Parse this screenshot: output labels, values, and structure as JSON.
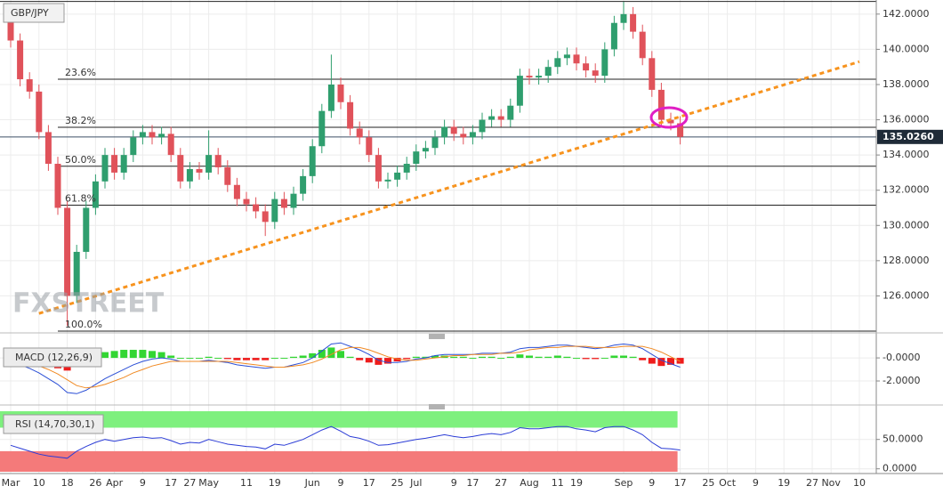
{
  "chart_data": {
    "type": "candlestick",
    "title": "GBP/JPY",
    "categories": [
      "Mar",
      null,
      null,
      "10",
      null,
      null,
      "18",
      null,
      null,
      "26",
      null,
      "Apr",
      null,
      null,
      "9",
      null,
      null,
      "17",
      null,
      "27",
      null,
      "May",
      null,
      null,
      null,
      "11",
      null,
      null,
      "19",
      null,
      null,
      null,
      "Jun",
      null,
      null,
      "9",
      null,
      null,
      "17",
      null,
      null,
      "25",
      null,
      "Jul",
      null,
      null,
      null,
      "9",
      null,
      "17",
      null,
      null,
      "27",
      null,
      null,
      "Aug",
      null,
      null,
      "11",
      null,
      "19",
      null,
      null,
      null,
      null,
      "Sep",
      null,
      null,
      "9",
      null,
      null,
      "17",
      null,
      null,
      "25",
      null,
      "Oct",
      null,
      null,
      "9",
      null,
      null,
      "19",
      null,
      null,
      "27",
      null,
      "Nov",
      null,
      null,
      "10"
    ],
    "open": [
      141.8,
      140.5,
      138.3,
      137.6,
      135.3,
      133.5,
      131.0,
      126.0,
      128.5,
      131.0,
      132.5,
      134.0,
      133.0,
      134.0,
      135.0,
      135.3,
      135.0,
      135.2,
      134.0,
      132.5,
      133.2,
      133.0,
      134.0,
      133.3,
      132.3,
      131.5,
      131.2,
      130.8,
      130.2,
      131.5,
      131.0,
      131.8,
      132.8,
      134.5,
      136.5,
      138.0,
      137.0,
      135.5,
      135.0,
      134.0,
      132.5,
      132.6,
      133.0,
      133.5,
      134.2,
      134.4,
      135.0,
      135.6,
      135.2,
      135.0,
      135.3,
      136.0,
      136.2,
      136.0,
      136.8,
      138.5,
      138.4,
      138.5,
      139.0,
      139.5,
      139.7,
      139.2,
      138.8,
      138.5,
      140.0,
      141.5,
      142.0,
      141.0,
      139.5,
      137.7,
      136.0,
      135.8,
      null,
      null,
      null,
      null,
      null,
      null,
      null,
      null,
      null,
      null,
      null,
      null,
      null,
      null,
      null,
      null,
      null,
      null,
      null
    ],
    "high": [
      142.3,
      140.9,
      138.7,
      138.0,
      135.7,
      133.9,
      131.4,
      128.9,
      131.4,
      132.9,
      134.4,
      134.4,
      134.4,
      135.4,
      135.7,
      135.7,
      135.6,
      135.6,
      134.4,
      133.6,
      133.6,
      135.4,
      134.4,
      133.7,
      132.7,
      131.9,
      131.6,
      131.2,
      131.9,
      131.9,
      132.2,
      133.2,
      134.9,
      136.9,
      139.7,
      138.4,
      137.4,
      135.9,
      135.4,
      134.4,
      133.0,
      133.4,
      133.9,
      134.6,
      134.8,
      135.4,
      136.0,
      136.0,
      135.6,
      135.7,
      136.4,
      136.6,
      136.6,
      137.2,
      138.9,
      138.9,
      138.9,
      139.4,
      139.9,
      140.1,
      140.1,
      139.6,
      139.2,
      140.4,
      141.9,
      142.7,
      142.4,
      141.4,
      139.9,
      138.1,
      136.4,
      136.2,
      null,
      null,
      null,
      null,
      null,
      null,
      null,
      null,
      null,
      null,
      null,
      null,
      null,
      null,
      null,
      null,
      null,
      null,
      null
    ],
    "low": [
      140.1,
      137.9,
      137.2,
      134.9,
      133.1,
      130.6,
      124.3,
      125.6,
      128.1,
      130.6,
      132.1,
      132.6,
      132.6,
      133.6,
      134.6,
      134.6,
      134.6,
      133.6,
      132.1,
      132.1,
      132.6,
      132.6,
      132.9,
      131.9,
      131.1,
      130.8,
      130.4,
      129.4,
      129.8,
      130.6,
      130.6,
      131.4,
      132.4,
      134.1,
      136.1,
      136.6,
      135.1,
      134.6,
      133.6,
      132.1,
      132.1,
      132.2,
      132.6,
      133.1,
      133.8,
      134.0,
      134.6,
      134.8,
      134.6,
      134.6,
      134.9,
      135.6,
      135.6,
      135.6,
      136.4,
      138.0,
      138.0,
      138.1,
      138.6,
      139.1,
      138.8,
      138.4,
      138.1,
      138.1,
      139.6,
      141.1,
      140.6,
      139.1,
      137.3,
      135.6,
      135.4,
      134.6,
      null,
      null,
      null,
      null,
      null,
      null,
      null,
      null,
      null,
      null,
      null,
      null,
      null,
      null,
      null,
      null,
      null,
      null,
      null
    ],
    "close": [
      140.5,
      138.3,
      137.6,
      135.3,
      133.5,
      131.0,
      126.0,
      128.5,
      131.0,
      132.5,
      134.0,
      133.0,
      134.0,
      135.0,
      135.3,
      135.0,
      135.2,
      134.0,
      132.5,
      133.2,
      133.0,
      134.0,
      133.3,
      132.3,
      131.5,
      131.2,
      130.8,
      130.2,
      131.5,
      131.0,
      131.8,
      132.8,
      134.5,
      136.5,
      138.0,
      137.0,
      135.5,
      135.0,
      134.0,
      132.5,
      132.6,
      133.0,
      133.5,
      134.2,
      134.4,
      135.0,
      135.6,
      135.2,
      135.0,
      135.3,
      136.0,
      136.2,
      136.0,
      136.8,
      138.5,
      138.4,
      138.5,
      139.0,
      139.5,
      139.7,
      139.2,
      138.8,
      138.5,
      140.0,
      141.5,
      142.0,
      141.0,
      139.5,
      137.7,
      136.0,
      135.8,
      135.03,
      null,
      null,
      null,
      null,
      null,
      null,
      null,
      null,
      null,
      null,
      null,
      null,
      null,
      null,
      null,
      null,
      null,
      null,
      null
    ],
    "up_color": "#2f9e6e",
    "down_color": "#e0525a",
    "ylim": [
      124,
      142.8
    ],
    "yticks": [
      {
        "value": 126,
        "label": "126.0000"
      },
      {
        "value": 128,
        "label": "128.0000"
      },
      {
        "value": 130,
        "label": "130.0000"
      },
      {
        "value": 132,
        "label": "132.0000"
      },
      {
        "value": 134,
        "label": "134.0000"
      },
      {
        "value": 136,
        "label": "136.0000"
      },
      {
        "value": 138,
        "label": "138.0000"
      },
      {
        "value": 140,
        "label": "140.0000"
      },
      {
        "value": 142,
        "label": "142.0000"
      }
    ],
    "grid": true,
    "last_price": {
      "value": 135.026,
      "label": "135.0260"
    },
    "swing_high": 142.72,
    "fib_levels": [
      {
        "label": "23.6%",
        "value": 138.3
      },
      {
        "label": "38.2%",
        "value": 135.57
      },
      {
        "label": "50.0%",
        "value": 133.36
      },
      {
        "label": "61.8%",
        "value": 131.15
      },
      {
        "label": "100.0%",
        "value": 124.0
      }
    ],
    "trendline": {
      "x": [
        3,
        90
      ],
      "y": [
        125.0,
        139.3
      ],
      "color": "#f7931e"
    },
    "watermark": "FXSTREET",
    "macd": {
      "title": "MACD (12,26,9)",
      "ylim": [
        -3.85,
        1.55
      ],
      "yticks": [
        {
          "value": 0,
          "label": "-0.0000"
        },
        {
          "value": -2,
          "label": "-2.0000"
        }
      ],
      "macd_color": "#2b4fd6",
      "signal_color": "#f08a24",
      "up_color": "#33d633",
      "down_color": "#ee1c1c",
      "macd": [
        -0.2,
        -0.6,
        -0.9,
        -1.3,
        -1.8,
        -2.3,
        -3.0,
        -3.1,
        -2.8,
        -2.3,
        -1.8,
        -1.4,
        -1.0,
        -0.6,
        -0.3,
        -0.1,
        0.0,
        -0.1,
        -0.3,
        -0.3,
        -0.3,
        -0.2,
        -0.3,
        -0.4,
        -0.6,
        -0.7,
        -0.8,
        -0.9,
        -0.8,
        -0.8,
        -0.6,
        -0.4,
        0.0,
        0.6,
        1.2,
        1.3,
        1.0,
        0.7,
        0.3,
        -0.2,
        -0.4,
        -0.4,
        -0.3,
        -0.1,
        0.0,
        0.2,
        0.3,
        0.3,
        0.3,
        0.3,
        0.4,
        0.4,
        0.4,
        0.5,
        0.8,
        0.9,
        0.9,
        1.0,
        1.1,
        1.1,
        1.0,
        0.9,
        0.8,
        0.9,
        1.1,
        1.2,
        1.1,
        0.8,
        0.3,
        -0.2,
        -0.5,
        -0.8,
        null,
        null,
        null,
        null,
        null,
        null,
        null,
        null,
        null,
        null,
        null,
        null,
        null,
        null,
        null,
        null,
        null,
        null,
        null
      ],
      "signal": [
        0.0,
        -0.2,
        -0.4,
        -0.7,
        -1.0,
        -1.4,
        -1.9,
        -2.4,
        -2.6,
        -2.5,
        -2.3,
        -2.0,
        -1.7,
        -1.3,
        -1.0,
        -0.7,
        -0.5,
        -0.3,
        -0.3,
        -0.3,
        -0.3,
        -0.3,
        -0.3,
        -0.3,
        -0.4,
        -0.5,
        -0.6,
        -0.7,
        -0.8,
        -0.8,
        -0.7,
        -0.6,
        -0.4,
        -0.1,
        0.3,
        0.7,
        0.9,
        0.9,
        0.7,
        0.4,
        0.1,
        -0.1,
        -0.2,
        -0.2,
        -0.1,
        0.0,
        0.1,
        0.2,
        0.2,
        0.3,
        0.3,
        0.3,
        0.4,
        0.4,
        0.5,
        0.7,
        0.8,
        0.9,
        0.9,
        1.0,
        1.0,
        1.0,
        0.9,
        0.9,
        0.9,
        1.0,
        1.0,
        1.0,
        0.8,
        0.5,
        0.1,
        -0.3,
        null,
        null,
        null,
        null,
        null,
        null,
        null,
        null,
        null,
        null,
        null,
        null,
        null,
        null,
        null,
        null,
        null,
        null,
        null
      ],
      "histogram": [
        -0.2,
        -0.4,
        -0.5,
        -0.6,
        -0.8,
        -0.9,
        -1.1,
        -0.7,
        -0.2,
        0.2,
        0.5,
        0.6,
        0.7,
        0.7,
        0.7,
        0.6,
        0.5,
        0.2,
        0.0,
        0.0,
        0.0,
        0.1,
        0.0,
        -0.1,
        -0.2,
        -0.2,
        -0.2,
        -0.2,
        0.0,
        0.0,
        0.1,
        0.2,
        0.4,
        0.7,
        0.9,
        0.6,
        0.1,
        -0.2,
        -0.4,
        -0.6,
        -0.5,
        -0.3,
        -0.1,
        0.1,
        0.1,
        0.2,
        0.2,
        0.1,
        0.1,
        0.0,
        0.1,
        0.1,
        0.0,
        0.1,
        0.3,
        0.2,
        0.1,
        0.1,
        0.2,
        0.1,
        0.0,
        -0.1,
        -0.1,
        0.0,
        0.2,
        0.2,
        0.1,
        -0.2,
        -0.5,
        -0.7,
        -0.6,
        -0.5,
        null,
        null,
        null,
        null,
        null,
        null,
        null,
        null,
        null,
        null,
        null,
        null,
        null,
        null,
        null,
        null,
        null,
        null,
        null
      ]
    },
    "rsi": {
      "title": "RSI (14,70,30,1)",
      "ylim": [
        -5,
        98
      ],
      "yticks": [
        {
          "value": 50,
          "label": "50.0000"
        },
        {
          "value": 0,
          "label": "0.0000"
        }
      ],
      "overbought": 70,
      "oversold": 30,
      "color": "#2b3cd6",
      "overbought_color": "#7ef07e",
      "oversold_color": "#f47a7a",
      "values": [
        40,
        35,
        30,
        25,
        22,
        20,
        18,
        30,
        38,
        45,
        50,
        47,
        50,
        53,
        54,
        52,
        53,
        48,
        42,
        45,
        44,
        50,
        46,
        42,
        40,
        38,
        37,
        34,
        42,
        40,
        45,
        50,
        58,
        66,
        72,
        64,
        55,
        52,
        47,
        40,
        41,
        44,
        47,
        50,
        52,
        55,
        58,
        55,
        53,
        55,
        58,
        60,
        58,
        62,
        70,
        68,
        68,
        70,
        72,
        72,
        68,
        66,
        63,
        70,
        72,
        72,
        66,
        58,
        45,
        35,
        34,
        32,
        null,
        null,
        null,
        null,
        null,
        null,
        null,
        null,
        null,
        null,
        null,
        null,
        null,
        null,
        null,
        null,
        null,
        null,
        null
      ]
    }
  }
}
